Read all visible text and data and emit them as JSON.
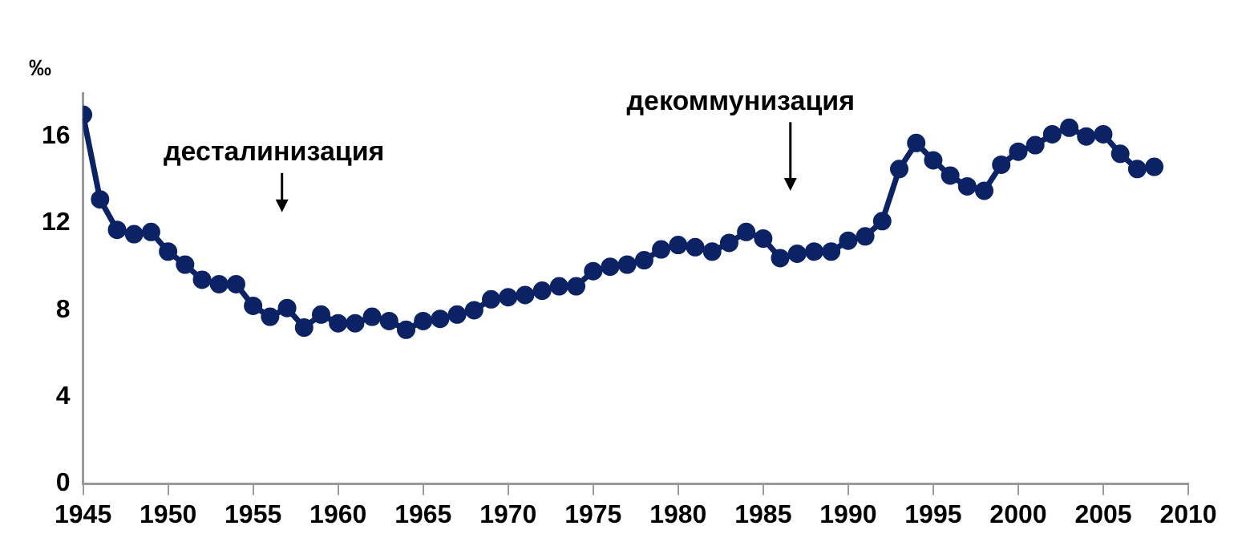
{
  "chart_data": {
    "type": "line",
    "ylabel": "‰",
    "x": [
      1945,
      1946,
      1947,
      1948,
      1949,
      1950,
      1951,
      1952,
      1953,
      1954,
      1955,
      1956,
      1957,
      1958,
      1959,
      1960,
      1961,
      1962,
      1963,
      1964,
      1965,
      1966,
      1967,
      1968,
      1969,
      1970,
      1971,
      1972,
      1973,
      1974,
      1975,
      1976,
      1977,
      1978,
      1979,
      1980,
      1981,
      1982,
      1983,
      1984,
      1985,
      1986,
      1987,
      1988,
      1989,
      1990,
      1991,
      1992,
      1993,
      1994,
      1995,
      1996,
      1997,
      1998,
      1999,
      2000,
      2001,
      2002,
      2003,
      2004,
      2005,
      2006,
      2007,
      2008
    ],
    "series": [
      {
        "color": "#0b2265",
        "values": [
          17.0,
          13.1,
          11.7,
          11.5,
          11.6,
          10.7,
          10.1,
          9.4,
          9.2,
          9.2,
          8.2,
          7.7,
          8.1,
          7.2,
          7.8,
          7.4,
          7.4,
          7.7,
          7.5,
          7.1,
          7.5,
          7.6,
          7.8,
          8.0,
          8.5,
          8.6,
          8.7,
          8.9,
          9.1,
          9.1,
          9.8,
          10.0,
          10.1,
          10.3,
          10.8,
          11.0,
          10.9,
          10.7,
          11.1,
          11.6,
          11.3,
          10.4,
          10.6,
          10.7,
          10.7,
          11.2,
          11.4,
          12.1,
          14.5,
          15.7,
          14.9,
          14.2,
          13.7,
          13.5,
          14.7,
          15.3,
          15.6,
          16.1,
          16.4,
          16.0,
          16.1,
          15.2,
          14.5,
          14.6
        ]
      }
    ],
    "xlim": [
      1945,
      2010
    ],
    "xticks": [
      1945,
      1950,
      1955,
      1960,
      1965,
      1970,
      1975,
      1980,
      1985,
      1990,
      1995,
      2000,
      2005,
      2010
    ],
    "ylim": [
      0,
      18
    ],
    "yticks": [
      0,
      4,
      8,
      12,
      16
    ],
    "annotations": [
      "десталинизация",
      "декоммунизация"
    ],
    "grid": false,
    "legend": false,
    "marker": "circle",
    "line_style": "solid"
  }
}
